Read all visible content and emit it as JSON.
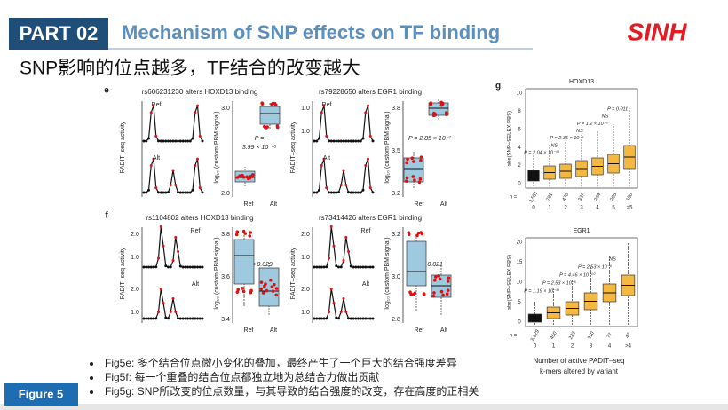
{
  "header": {
    "part": "PART 02",
    "title": "Mechanism of SNP effects on TF binding",
    "logo": "SINH"
  },
  "subtitle": "SNP影响的位点越多，TF结合的改变越大",
  "panel_e": {
    "label": "e",
    "left": {
      "title": "rs606231230 alters HOXD13 binding",
      "ref": "Ref",
      "alt": "Alt",
      "trace_y_label": "PADIT–seq activity",
      "box_y_label": "log₁₀ (custom PBM signal)",
      "box_ticks": [
        "3.0",
        "2.0"
      ],
      "x_labels": [
        "Ref",
        "Alt"
      ],
      "p_value": [
        "P =",
        "3.99 × 10⁻¹⁶"
      ]
    },
    "right": {
      "title": "rs79228650 alters EGR1 binding",
      "ref": "Ref",
      "alt": "Alt",
      "trace_y_label": "PADIT–seq activity",
      "trace_ticks": [
        "1.0",
        "1.0"
      ],
      "box_y_label": "log₁₀ (custom PBM signal)",
      "box_ticks": [
        "3.8",
        "3.5",
        "3.2"
      ],
      "x_labels": [
        "Ref",
        "Alt"
      ],
      "p_value": [
        "P = 2.85 × 10⁻⁷"
      ]
    }
  },
  "panel_f": {
    "label": "f",
    "left": {
      "title": "rs1104802 alters HOXD13 binding",
      "ref": "Ref",
      "alt": "Alt",
      "trace_y_label": "PADIT–seq activity",
      "trace_ticks": [
        "2.0",
        "1.0",
        "2.0",
        "1.0"
      ],
      "box_y_label": "log₁₀ (custom PBM signal)",
      "box_ticks": [
        "3.8",
        "3.6",
        "3.4"
      ],
      "x_labels": [
        "Ref",
        "Alt"
      ],
      "p_value": [
        "P = 0.029"
      ]
    },
    "right": {
      "title": "rs73414426 alters EGR1 binding",
      "ref": "Ref",
      "alt": "Alt",
      "trace_y_label": "PADIT–seq activity",
      "trace_ticks": [
        "2.0",
        "1.0",
        "2.0",
        "1.0"
      ],
      "box_y_label": "log₁₀ (custom PBM signal)",
      "box_ticks": [
        "3.2",
        "3.0",
        "2.8"
      ],
      "x_labels": [
        "Ref",
        "Alt"
      ],
      "p_value": [
        "P = 0.021"
      ]
    }
  },
  "panel_g": {
    "label": "g",
    "top": {
      "title": "HOXD13",
      "y_label": "abs(SNP–SELEX PBS)",
      "y_ticks": [
        "10",
        "8",
        "6",
        "4",
        "2",
        "0"
      ],
      "n_label": "n =",
      "counts": [
        "3,551",
        "781",
        "470",
        "337",
        "264",
        "205",
        "150"
      ],
      "categories": [
        "0",
        "1",
        "2",
        "3",
        "4",
        "5",
        ">5"
      ],
      "p_values": [
        "P = 2.04 × 10⁻¹³",
        "NS",
        "P = 2.35 × 10⁻⁵",
        "NS",
        "P = 1.2 × 10⁻³",
        "NS",
        "P = 0.011"
      ]
    },
    "bottom": {
      "title": "EGR1",
      "y_label": "abs(SNP–SELEX PBS)",
      "y_ticks": [
        "20",
        "15",
        "10",
        "5",
        "0"
      ],
      "n_label": "n =",
      "counts": [
        "3,129",
        "450",
        "223",
        "210",
        "77",
        "47"
      ],
      "categories": [
        "0",
        "1",
        "2",
        "3",
        "4",
        ">4"
      ],
      "p_values": [
        "P = 1.19 × 10⁻³³",
        "P = 2.53 × 10⁻⁵",
        "P = 4.46 × 10⁻¹⁰",
        "P = 2.53 × 10⁻⁶",
        "NS"
      ]
    },
    "x_label": [
      "Number of active  PADIT–seq",
      "k-mers altered by variant"
    ]
  },
  "bullets": [
    "Fig5e:  多个结合位点微小变化的叠加，最终产生了一个巨大的结合强度差异",
    "Fig5f:  每一个重叠的结合位点都独立地为总结合力做出贡献",
    "Fig5g: SNP所改变的位点数量，与其导致的结合强度的改变，存在高度的正相关"
  ],
  "figure_label": "Figure 5"
}
